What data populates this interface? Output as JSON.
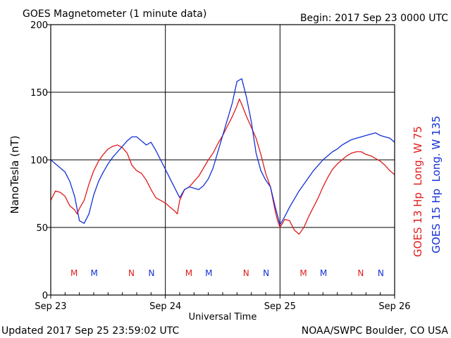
{
  "header": {
    "title": "GOES Magnetometer (1 minute data)",
    "begin": "Begin:  2017 Sep 23 0000 UTC"
  },
  "footer": {
    "updated": "Updated 2017 Sep 25 23:59:02 UTC",
    "credit": "NOAA/SWPC Boulder, CO USA"
  },
  "colors": {
    "goes13": "#e11b1b",
    "goes15": "#1430d6",
    "axes": "#000000"
  },
  "chart_data": {
    "type": "line",
    "title": "GOES Magnetometer (1 minute data)",
    "xlabel": "Universal Time",
    "ylabel": "NanoTesla (nT)",
    "xlim": [
      0,
      72
    ],
    "ylim": [
      0,
      200
    ],
    "grid": true,
    "x_ticks": [
      {
        "hour": 0,
        "label": "Sep 23"
      },
      {
        "hour": 24,
        "label": "Sep 24"
      },
      {
        "hour": 48,
        "label": "Sep 25"
      },
      {
        "hour": 72,
        "label": "Sep 26"
      }
    ],
    "y_ticks": [
      0,
      50,
      100,
      150,
      200
    ],
    "legend_position": "right, vertical",
    "series": [
      {
        "name": "GOES 13 Hp  Long. W 75",
        "color": "#e11b1b",
        "x": [
          0,
          1,
          2,
          3,
          4,
          5,
          5.5,
          6,
          7,
          8,
          9,
          10,
          11,
          12,
          13,
          14,
          15,
          16,
          17,
          18,
          19,
          20,
          21,
          22,
          23,
          24,
          25,
          26,
          26.5,
          27,
          28,
          29,
          30,
          31,
          32,
          33,
          34,
          35,
          36,
          37,
          38,
          39,
          39.5,
          40,
          41,
          42,
          43,
          44,
          45,
          46,
          47,
          47.5,
          48,
          49,
          50,
          51,
          52,
          53,
          54,
          55,
          56,
          57,
          58,
          59,
          60,
          61,
          62,
          63,
          64,
          65,
          66,
          67,
          68,
          69,
          70,
          71,
          72
        ],
        "y": [
          70,
          77,
          76,
          73,
          66,
          63,
          60,
          64,
          70,
          82,
          92,
          99,
          104,
          108,
          110,
          111,
          109,
          105,
          96,
          92,
          90,
          85,
          78,
          72,
          70,
          68,
          65,
          62,
          60,
          70,
          78,
          80,
          84,
          88,
          94,
          100,
          105,
          112,
          118,
          125,
          132,
          140,
          145,
          141,
          132,
          124,
          116,
          104,
          90,
          80,
          62,
          55,
          50,
          56,
          55,
          48,
          45,
          50,
          58,
          65,
          72,
          80,
          87,
          93,
          97,
          100,
          103,
          105,
          106,
          106,
          104,
          103,
          101,
          99,
          96,
          92,
          89
        ]
      },
      {
        "name": "GOES 15 Hp  Long. W 135",
        "color": "#1430d6",
        "x": [
          0,
          1,
          2,
          3,
          4,
          5,
          6,
          7,
          8,
          9,
          10,
          11,
          12,
          13,
          14,
          15,
          16,
          17,
          18,
          19,
          20,
          21,
          22,
          23,
          24,
          25,
          26,
          27,
          28,
          29,
          30,
          31,
          32,
          33,
          34,
          35,
          36,
          37,
          38,
          39,
          40,
          41,
          42,
          43,
          44,
          45,
          46,
          47,
          48,
          49,
          50,
          51,
          52,
          53,
          54,
          55,
          56,
          57,
          58,
          59,
          60,
          61,
          62,
          63,
          64,
          65,
          66,
          67,
          68,
          69,
          70,
          71,
          72
        ],
        "y": [
          100,
          97,
          94,
          91,
          84,
          73,
          55,
          53,
          60,
          74,
          84,
          91,
          97,
          102,
          106,
          110,
          114,
          117,
          117,
          114,
          111,
          113,
          107,
          100,
          93,
          86,
          79,
          72,
          78,
          80,
          79,
          78,
          81,
          86,
          94,
          106,
          118,
          130,
          142,
          158,
          160,
          146,
          128,
          105,
          92,
          85,
          80,
          65,
          52,
          58,
          65,
          71,
          77,
          82,
          87,
          92,
          96,
          100,
          103,
          106,
          108,
          111,
          113,
          115,
          116,
          117,
          118,
          119,
          120,
          118,
          117,
          116,
          113
        ]
      }
    ],
    "annotations": [
      {
        "text": "M",
        "hour": 4.9,
        "series": "GOES 13 Hp  Long. W 75"
      },
      {
        "text": "M",
        "hour": 9.1,
        "series": "GOES 15 Hp  Long. W 135"
      },
      {
        "text": "N",
        "hour": 16.9,
        "series": "GOES 13 Hp  Long. W 75"
      },
      {
        "text": "N",
        "hour": 21.1,
        "series": "GOES 15 Hp  Long. W 135"
      },
      {
        "text": "M",
        "hour": 28.9,
        "series": "GOES 13 Hp  Long. W 75"
      },
      {
        "text": "M",
        "hour": 33.1,
        "series": "GOES 15 Hp  Long. W 135"
      },
      {
        "text": "N",
        "hour": 40.9,
        "series": "GOES 13 Hp  Long. W 75"
      },
      {
        "text": "N",
        "hour": 45.1,
        "series": "GOES 15 Hp  Long. W 135"
      },
      {
        "text": "M",
        "hour": 52.9,
        "series": "GOES 13 Hp  Long. W 75"
      },
      {
        "text": "M",
        "hour": 57.1,
        "series": "GOES 15 Hp  Long. W 135"
      },
      {
        "text": "N",
        "hour": 64.9,
        "series": "GOES 13 Hp  Long. W 75"
      },
      {
        "text": "N",
        "hour": 69.1,
        "series": "GOES 15 Hp  Long. W 135"
      }
    ]
  }
}
